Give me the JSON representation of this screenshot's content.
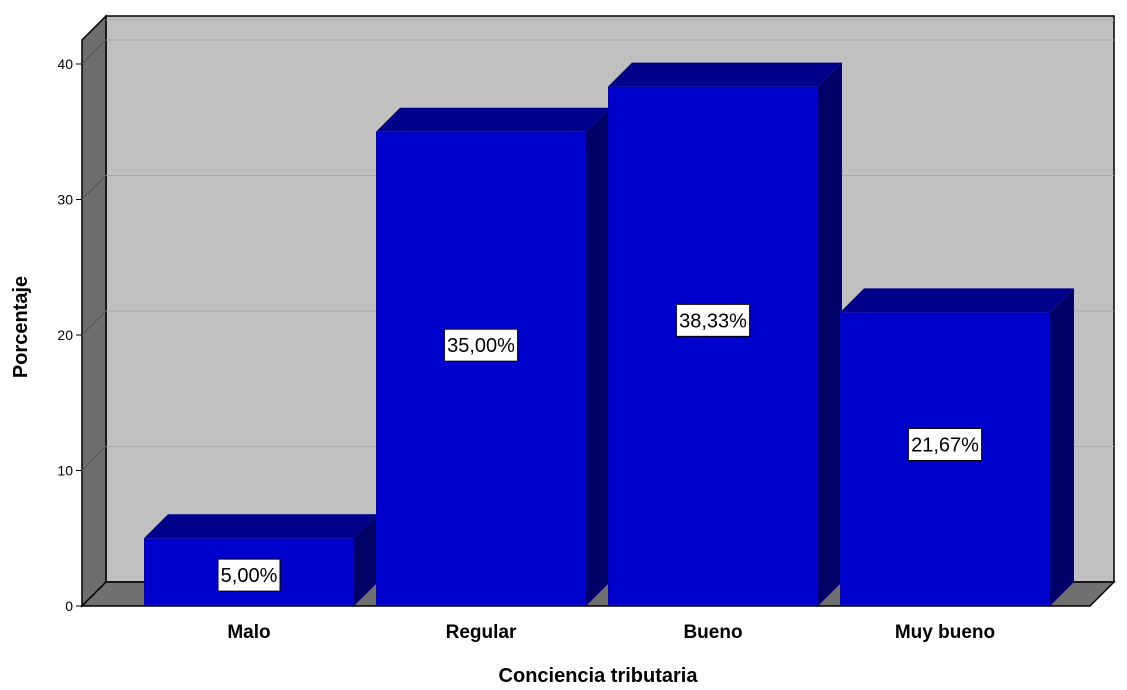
{
  "chart_data": {
    "type": "bar",
    "categories": [
      "Malo",
      "Regular",
      "Bueno",
      "Muy bueno"
    ],
    "values": [
      5.0,
      35.0,
      38.33,
      21.67
    ],
    "data_labels": [
      "5,00%",
      "35,00%",
      "38,33%",
      "21,67%"
    ],
    "xlabel": "Conciencia tributaria",
    "ylabel": "Porcentaje",
    "ylim": [
      0,
      40
    ],
    "yticks": [
      "0",
      "10",
      "20",
      "30",
      "40"
    ],
    "grid": true,
    "style": "3d",
    "colors": {
      "bar_front": "#0000cc",
      "bar_top": "#00008a",
      "bar_side": "#000066",
      "wall": "#c0c0c0",
      "floor": "#707070",
      "grid": "#a8a8a8"
    }
  }
}
